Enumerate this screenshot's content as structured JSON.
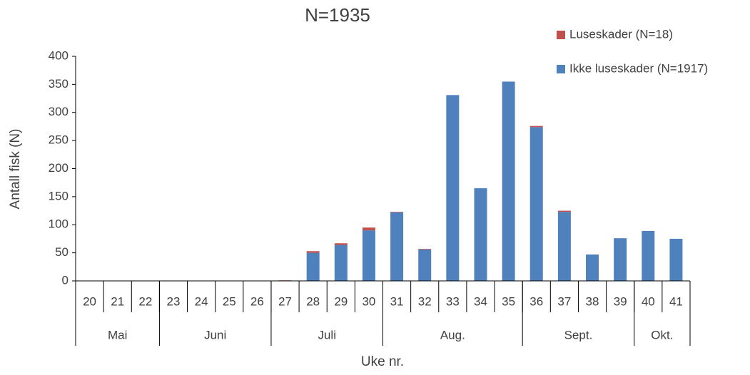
{
  "chart_data": {
    "type": "bar",
    "stacked": true,
    "title": "N=1935",
    "xlabel": "Uke nr.",
    "ylabel": "Antall fisk (N)",
    "categories": [
      "20",
      "21",
      "22",
      "23",
      "24",
      "25",
      "26",
      "27",
      "28",
      "29",
      "30",
      "31",
      "32",
      "33",
      "34",
      "35",
      "36",
      "37",
      "38",
      "39",
      "40",
      "41"
    ],
    "groups": [
      {
        "label": "Mai",
        "size": 3
      },
      {
        "label": "Juni",
        "size": 4
      },
      {
        "label": "Juli",
        "size": 4
      },
      {
        "label": "Aug.",
        "size": 5
      },
      {
        "label": "Sept.",
        "size": 4
      },
      {
        "label": "Okt.",
        "size": 2
      }
    ],
    "series": [
      {
        "name": "Ikke luseskader (N=1917)",
        "color": "#4f81bd",
        "values": [
          0,
          0,
          0,
          0,
          0,
          0,
          0,
          0,
          50,
          64,
          90,
          122,
          56,
          331,
          165,
          355,
          274,
          123,
          47,
          76,
          89,
          75
        ]
      },
      {
        "name": "Luseskader (N=18)",
        "color": "#c0504d",
        "values": [
          0,
          0,
          0,
          0,
          0,
          0,
          0,
          1,
          3,
          3,
          5,
          1,
          1,
          0,
          0,
          0,
          2,
          2,
          0,
          0,
          0,
          0
        ]
      }
    ],
    "ylim": [
      0,
      400
    ],
    "yticks": [
      0,
      50,
      100,
      150,
      200,
      250,
      300,
      350,
      400
    ],
    "grid": false,
    "legend": "top-right"
  }
}
